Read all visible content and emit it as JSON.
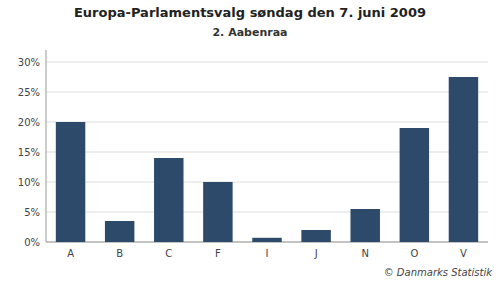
{
  "chart_data": {
    "type": "bar",
    "title": "Europa-Parlamentsvalg søndag  den 7. juni 2009",
    "subtitle": "2. Aabenraa",
    "footer": "© Danmarks Statistik",
    "categories": [
      "A",
      "B",
      "C",
      "F",
      "I",
      "J",
      "N",
      "O",
      "V"
    ],
    "values": [
      20.0,
      3.5,
      14.0,
      10.0,
      0.7,
      2.0,
      5.5,
      19.0,
      27.5
    ],
    "color": "#2d4a6b",
    "ylim": [
      0,
      32
    ],
    "yticks": [
      {
        "value": 0,
        "label": "0%"
      },
      {
        "value": 5,
        "label": "5%"
      },
      {
        "value": 10,
        "label": "10%"
      },
      {
        "value": 15,
        "label": "15%"
      },
      {
        "value": 20,
        "label": "20%"
      },
      {
        "value": 25,
        "label": "25%"
      },
      {
        "value": 30,
        "label": "30%"
      }
    ],
    "grid": true
  }
}
